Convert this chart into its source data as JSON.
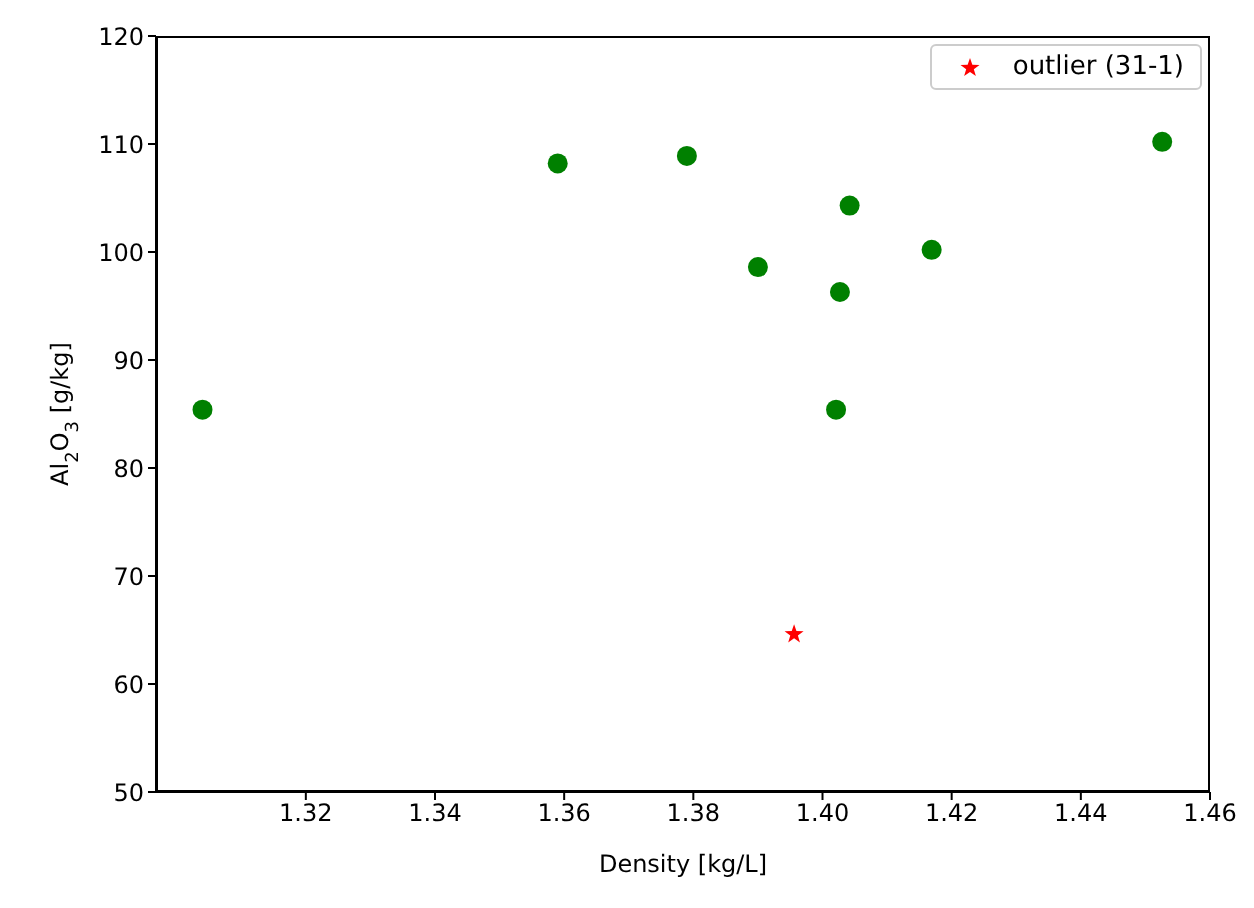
{
  "chart_data": {
    "type": "scatter",
    "xlabel": "Density [kg/L]",
    "ylabel": "Al$_{2}$O$_{3}$ [g/kg]",
    "series": [
      {
        "color": "#008000",
        "marker": "circle",
        "x": [
          1.304,
          1.359,
          1.379,
          1.39,
          1.4027,
          1.4021,
          1.4042,
          1.4169,
          1.4526
        ],
        "values": [
          85.4,
          108.2,
          108.9,
          98.6,
          96.3,
          85.4,
          104.3,
          100.2,
          110.2
        ]
      },
      {
        "name": "outlier (31-1)",
        "color": "#ff0000",
        "marker": "star",
        "x": [
          1.3956
        ],
        "values": [
          64.6
        ]
      }
    ],
    "xlim": [
      1.2968,
      1.46
    ],
    "xticks": [
      {
        "value": 1.32,
        "label": "1.32"
      },
      {
        "value": 1.34,
        "label": "1.34"
      },
      {
        "value": 1.36,
        "label": "1.36"
      },
      {
        "value": 1.38,
        "label": "1.38"
      },
      {
        "value": 1.4,
        "label": "1.40"
      },
      {
        "value": 1.42,
        "label": "1.42"
      },
      {
        "value": 1.44,
        "label": "1.44"
      },
      {
        "value": 1.46,
        "label": "1.46"
      }
    ],
    "ylim": [
      50,
      120
    ],
    "yticks": [
      50,
      60,
      70,
      80,
      90,
      100,
      110,
      120
    ],
    "legend": "top right",
    "grid": false
  }
}
